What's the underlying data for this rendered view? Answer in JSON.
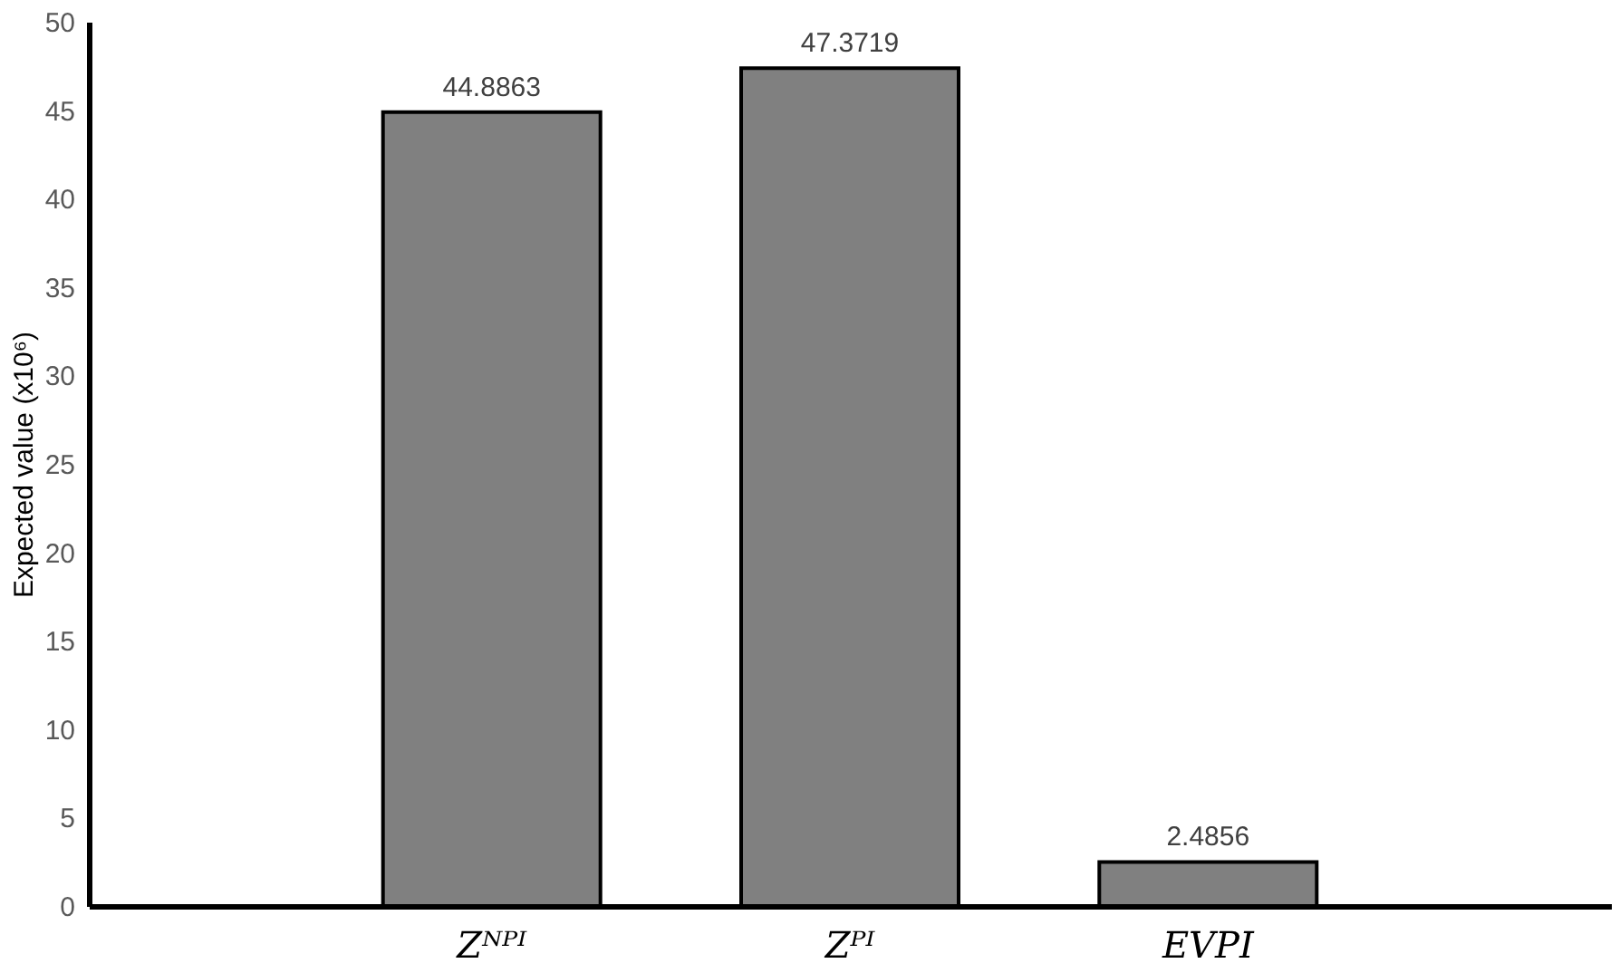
{
  "chart_data": {
    "type": "bar",
    "categories": [
      "Zᴺᴾᴵ",
      "Zᴾᴵ",
      "EVPI"
    ],
    "values": [
      44.8863,
      47.3719,
      2.4856
    ],
    "colors": [
      "#808080",
      "#808080",
      "#808080"
    ],
    "ylabel": "Expected value (x10⁶)",
    "ylim": [
      0,
      50
    ],
    "yticks": [
      0,
      5,
      10,
      15,
      20,
      25,
      30,
      35,
      40,
      45,
      50
    ],
    "data_labels": true,
    "grid": false
  }
}
